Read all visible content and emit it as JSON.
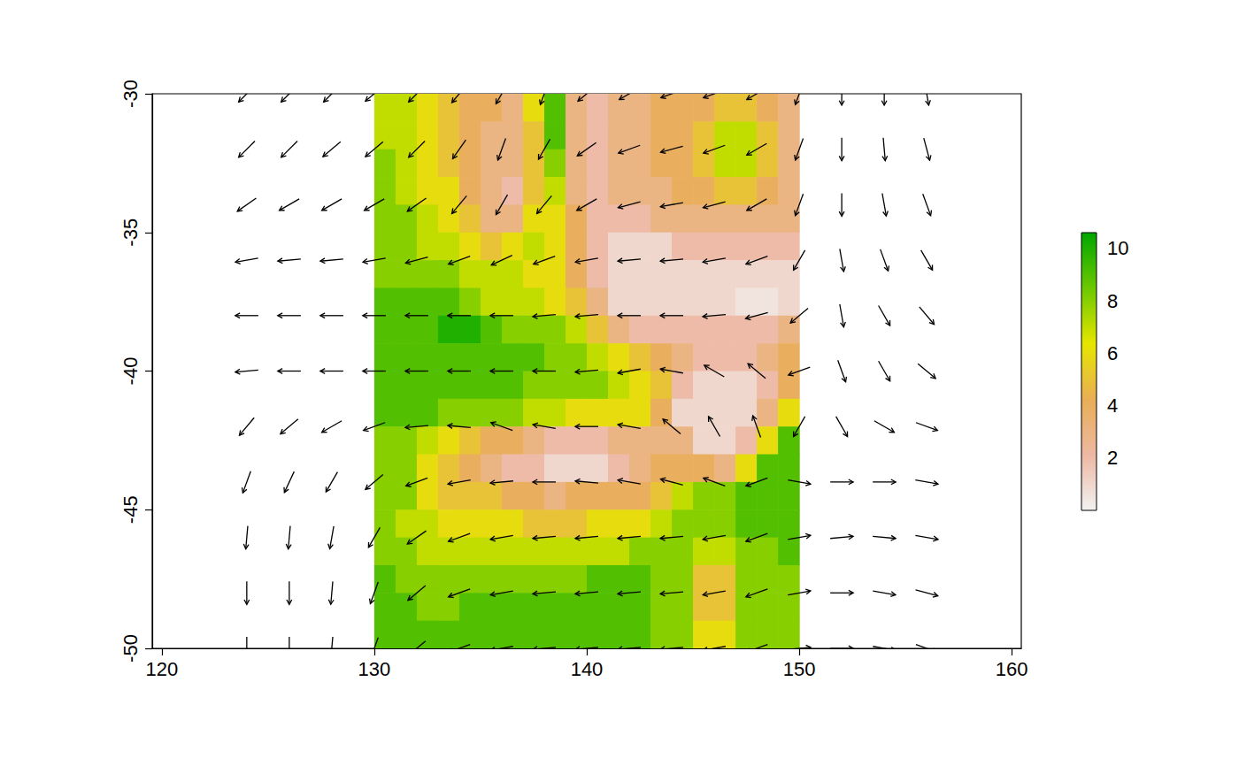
{
  "chart_data": {
    "type": "vector_field",
    "xlim": [
      119.55,
      160.45
    ],
    "ylim": [
      -50,
      -30
    ],
    "xticks": [
      120,
      130,
      140,
      150,
      160
    ],
    "yticks": [
      -50,
      -45,
      -40,
      -35,
      -30
    ],
    "grid": false,
    "raster": {
      "x": [
        130.5,
        131.5,
        132.5,
        133.5,
        134.5,
        135.5,
        136.5,
        137.5,
        138.5,
        139.5,
        140.5,
        141.5,
        142.5,
        143.5,
        144.5,
        145.5,
        146.5,
        147.5,
        148.5,
        149.5
      ],
      "y": [
        -30.5,
        -31.5,
        -32.5,
        -33.5,
        -34.5,
        -35.5,
        -36.5,
        -37.5,
        -38.5,
        -39.5,
        -40.5,
        -41.5,
        -42.5,
        -43.5,
        -44.5,
        -45.5,
        -46.5,
        -47.5,
        -48.5,
        -49.5
      ],
      "values": [
        [
          7,
          7,
          6,
          5,
          4,
          4,
          3,
          6,
          9,
          3,
          2,
          3,
          3,
          4,
          4,
          4,
          5,
          5,
          4,
          3
        ],
        [
          7,
          7,
          6,
          5,
          4,
          3,
          3,
          5,
          9,
          3,
          2,
          3,
          3,
          4,
          4,
          5,
          7,
          7,
          5,
          3
        ],
        [
          8,
          7,
          6,
          5,
          4,
          3,
          3,
          5,
          8,
          3,
          2,
          3,
          3,
          4,
          4,
          5,
          7,
          7,
          5,
          3
        ],
        [
          8,
          7,
          6,
          6,
          4,
          3,
          2,
          5,
          7,
          3,
          2,
          3,
          3,
          3,
          4,
          4,
          5,
          5,
          4,
          3
        ],
        [
          8,
          8,
          7,
          6,
          5,
          3,
          3,
          6,
          6,
          4,
          2,
          2,
          2,
          3,
          3,
          3,
          3,
          3,
          3,
          3
        ],
        [
          8,
          8,
          7,
          7,
          6,
          5,
          6,
          7,
          6,
          4,
          2,
          1,
          1,
          1,
          2,
          2,
          2,
          2,
          2,
          2
        ],
        [
          8,
          8,
          8,
          8,
          7,
          7,
          7,
          6,
          6,
          4,
          2,
          1,
          1,
          1,
          1,
          1,
          1,
          1,
          1,
          1
        ],
        [
          9,
          9,
          9,
          9,
          8,
          7,
          7,
          7,
          6,
          5,
          3,
          1,
          1,
          1,
          1,
          1,
          1,
          0.5,
          0.5,
          1
        ],
        [
          9,
          9,
          9,
          10,
          10,
          9,
          8,
          8,
          8,
          7,
          5,
          3,
          2,
          2,
          2,
          2,
          2,
          2,
          2,
          3
        ],
        [
          9,
          9,
          9,
          9,
          9,
          9,
          9,
          9,
          8,
          8,
          7,
          6,
          5,
          4,
          3,
          2,
          2,
          2,
          3,
          4
        ],
        [
          9,
          9,
          9,
          9,
          9,
          9,
          9,
          8,
          8,
          8,
          8,
          7,
          6,
          5,
          2,
          1,
          1,
          1,
          2,
          4
        ],
        [
          9,
          9,
          9,
          8,
          8,
          8,
          8,
          7,
          7,
          6,
          6,
          6,
          6,
          4,
          1,
          1,
          1,
          1,
          3,
          6
        ],
        [
          8,
          8,
          7,
          6,
          5,
          4,
          4,
          3,
          2,
          2,
          2,
          3,
          3,
          3,
          3,
          1,
          1,
          2,
          6,
          9
        ],
        [
          8,
          8,
          6,
          5,
          4,
          3,
          2,
          2,
          1,
          1,
          1,
          2,
          3,
          4,
          4,
          4,
          3,
          6,
          9,
          9
        ],
        [
          8,
          8,
          6,
          5,
          5,
          5,
          4,
          4,
          3,
          4,
          4,
          4,
          4,
          5,
          7,
          8,
          8,
          9,
          9,
          9
        ],
        [
          8,
          7,
          7,
          6,
          6,
          6,
          6,
          5,
          5,
          5,
          6,
          6,
          6,
          7,
          8,
          8,
          8,
          9,
          9,
          9
        ],
        [
          8,
          8,
          7,
          7,
          7,
          7,
          7,
          7,
          7,
          7,
          7,
          7,
          8,
          8,
          8,
          7,
          7,
          8,
          8,
          9
        ],
        [
          9,
          8,
          8,
          8,
          8,
          8,
          8,
          8,
          8,
          8,
          9,
          9,
          9,
          8,
          8,
          5,
          5,
          8,
          8,
          8
        ],
        [
          9,
          9,
          8,
          8,
          9,
          9,
          9,
          9,
          9,
          9,
          9,
          9,
          9,
          8,
          8,
          5,
          5,
          8,
          8,
          8
        ],
        [
          9,
          9,
          9,
          9,
          9,
          9,
          9,
          9,
          9,
          9,
          9,
          9,
          9,
          8,
          8,
          6,
          6,
          8,
          8,
          8
        ]
      ]
    },
    "colorbar": {
      "range": [
        0,
        10.6
      ],
      "ticks": [
        2,
        4,
        6,
        8,
        10
      ]
    },
    "arrows": {
      "x": [
        124,
        126,
        128,
        130,
        132,
        134,
        136,
        138,
        140,
        142,
        144,
        146,
        148,
        150,
        152,
        154,
        156
      ],
      "y": [
        -30,
        -32,
        -34,
        -36,
        -38,
        -40,
        -42,
        -44,
        -46,
        -48,
        -50
      ],
      "angle": [
        [
          225,
          225,
          225,
          220,
          225,
          230,
          240,
          250,
          220,
          210,
          200,
          200,
          210,
          250,
          270,
          270,
          280
        ],
        [
          225,
          225,
          220,
          220,
          225,
          235,
          250,
          240,
          215,
          200,
          195,
          200,
          210,
          250,
          270,
          275,
          285
        ],
        [
          215,
          210,
          210,
          210,
          215,
          230,
          240,
          230,
          210,
          195,
          190,
          195,
          210,
          250,
          270,
          280,
          290
        ],
        [
          190,
          185,
          185,
          190,
          195,
          200,
          205,
          200,
          190,
          185,
          185,
          190,
          200,
          240,
          280,
          290,
          300
        ],
        [
          180,
          180,
          180,
          180,
          180,
          180,
          180,
          185,
          185,
          180,
          180,
          185,
          195,
          220,
          280,
          300,
          310
        ],
        [
          185,
          180,
          180,
          180,
          180,
          180,
          180,
          180,
          185,
          190,
          170,
          150,
          140,
          200,
          290,
          300,
          320
        ],
        [
          230,
          220,
          210,
          200,
          185,
          175,
          160,
          170,
          180,
          170,
          140,
          120,
          110,
          240,
          300,
          330,
          340
        ],
        [
          250,
          245,
          240,
          220,
          200,
          190,
          185,
          180,
          175,
          170,
          165,
          160,
          200,
          350,
          0,
          0,
          350
        ],
        [
          265,
          265,
          260,
          240,
          215,
          200,
          190,
          185,
          185,
          185,
          185,
          190,
          200,
          10,
          5,
          355,
          350
        ],
        [
          270,
          270,
          265,
          250,
          220,
          200,
          190,
          185,
          185,
          185,
          185,
          190,
          200,
          10,
          0,
          350,
          345
        ],
        [
          270,
          270,
          265,
          250,
          220,
          200,
          190,
          185,
          185,
          185,
          185,
          190,
          200,
          5,
          0,
          350,
          340
        ]
      ]
    }
  }
}
